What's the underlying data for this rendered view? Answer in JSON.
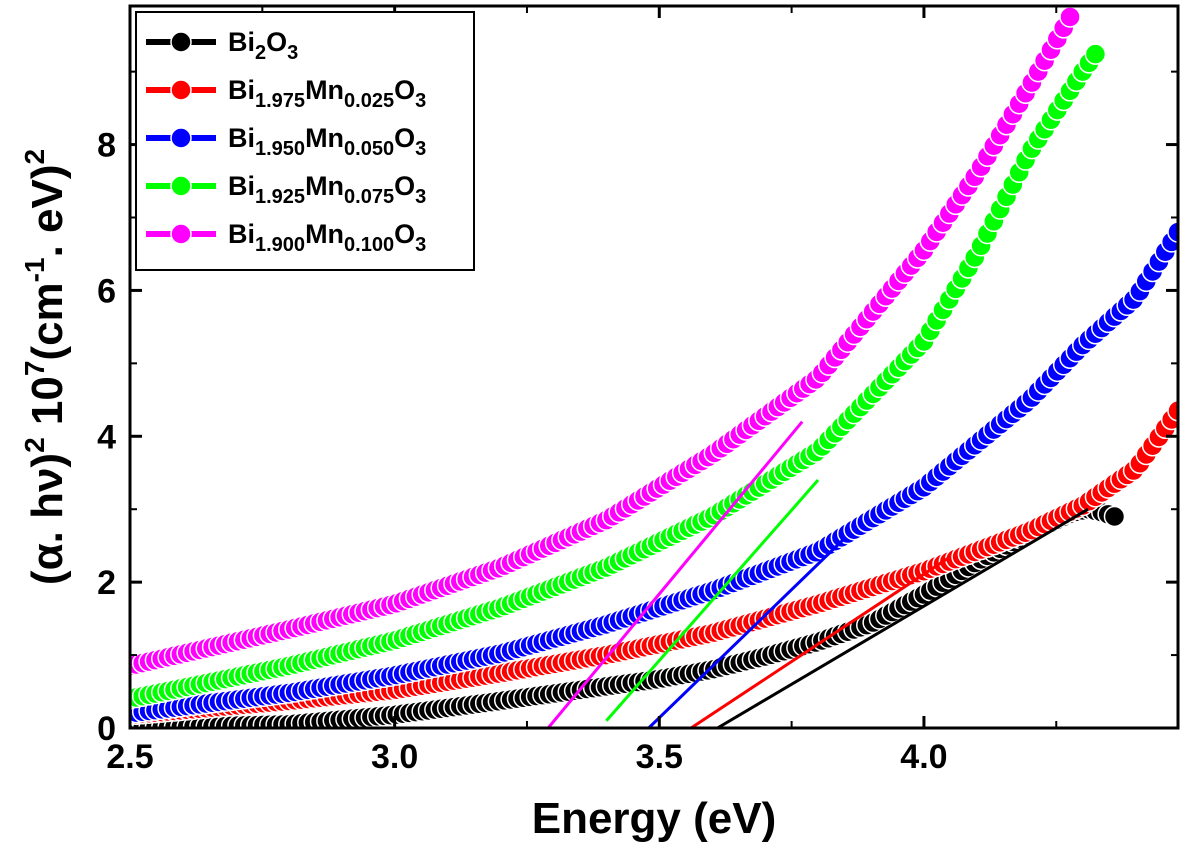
{
  "chart_data": {
    "type": "scatter",
    "title": "",
    "xlabel": "Energy (eV)",
    "ylabel": {
      "open": "(",
      "alpha": "α",
      "mid": ". hν)",
      "sup1": "2",
      "ten": " 10",
      "sup2": "7",
      "cm": "(cm",
      "sup3": "-1",
      "ev": ". eV)",
      "sup4": "2"
    },
    "xlim": [
      2.5,
      4.48
    ],
    "ylim": [
      0,
      9.9
    ],
    "xticks": [
      2.5,
      3.0,
      3.5,
      4.0
    ],
    "xtick_labels": [
      "2.5",
      "3.0",
      "3.5",
      "4.0"
    ],
    "yticks": [
      0,
      2,
      4,
      6,
      8
    ],
    "ytick_labels": [
      "0",
      "2",
      "4",
      "6",
      "8"
    ],
    "legend_position": "top-left",
    "series": [
      {
        "name": "Bi2O3",
        "label": {
          "base": "Bi",
          "sub1": "2",
          "mid": "O",
          "sub2": "3"
        },
        "color": "#000000",
        "x_range": [
          2.5,
          4.36
        ],
        "points": [
          [
            2.5,
            0.0
          ],
          [
            2.8,
            0.05
          ],
          [
            3.0,
            0.18
          ],
          [
            3.2,
            0.37
          ],
          [
            3.4,
            0.57
          ],
          [
            3.5,
            0.67
          ],
          [
            3.6,
            0.8
          ],
          [
            3.7,
            0.98
          ],
          [
            3.8,
            1.18
          ],
          [
            3.9,
            1.43
          ],
          [
            4.0,
            1.83
          ],
          [
            4.1,
            2.28
          ],
          [
            4.2,
            2.68
          ],
          [
            4.28,
            2.95
          ],
          [
            4.31,
            3.0
          ],
          [
            4.34,
            2.95
          ],
          [
            4.36,
            2.9
          ]
        ],
        "fit": [
          [
            3.61,
            0.0
          ],
          [
            4.31,
            3.0
          ]
        ]
      },
      {
        "name": "Bi1.975Mn0.025O3",
        "label": {
          "base": "Bi",
          "sub1": "1.975",
          "mid": "Mn",
          "sub2": "0.025",
          "end": "O",
          "sub3": "3"
        },
        "color": "#ff0000",
        "x_range": [
          2.5,
          4.48
        ],
        "points": [
          [
            2.5,
            0.18
          ],
          [
            2.8,
            0.37
          ],
          [
            3.0,
            0.52
          ],
          [
            3.2,
            0.75
          ],
          [
            3.4,
            1.0
          ],
          [
            3.6,
            1.3
          ],
          [
            3.8,
            1.7
          ],
          [
            4.0,
            2.15
          ],
          [
            4.2,
            2.7
          ],
          [
            4.3,
            3.05
          ],
          [
            4.4,
            3.55
          ],
          [
            4.48,
            4.35
          ]
        ],
        "fit": [
          [
            3.56,
            0.0
          ],
          [
            4.05,
            2.35
          ]
        ]
      },
      {
        "name": "Bi1.950Mn0.050O3",
        "label": {
          "base": "Bi",
          "sub1": "1.950",
          "mid": "Mn",
          "sub2": "0.050",
          "end": "O",
          "sub3": "3"
        },
        "color": "#0000ff",
        "x_range": [
          2.5,
          4.48
        ],
        "points": [
          [
            2.5,
            0.2
          ],
          [
            2.8,
            0.48
          ],
          [
            3.0,
            0.72
          ],
          [
            3.2,
            1.02
          ],
          [
            3.4,
            1.42
          ],
          [
            3.6,
            1.88
          ],
          [
            3.8,
            2.42
          ],
          [
            4.0,
            3.3
          ],
          [
            4.2,
            4.5
          ],
          [
            4.3,
            5.25
          ],
          [
            4.4,
            5.9
          ],
          [
            4.48,
            6.8
          ]
        ],
        "fit": [
          [
            3.48,
            0.0
          ],
          [
            3.85,
            2.6
          ]
        ]
      },
      {
        "name": "Bi1.925Mn0.075O3",
        "label": {
          "base": "Bi",
          "sub1": "1.925",
          "mid": "Mn",
          "sub2": "0.075",
          "end": "O",
          "sub3": "3"
        },
        "color": "#00ff00",
        "x_range": [
          2.5,
          4.33
        ],
        "points": [
          [
            2.5,
            0.4
          ],
          [
            2.8,
            0.85
          ],
          [
            3.0,
            1.2
          ],
          [
            3.2,
            1.65
          ],
          [
            3.4,
            2.2
          ],
          [
            3.6,
            2.9
          ],
          [
            3.8,
            3.8
          ],
          [
            4.0,
            5.3
          ],
          [
            4.1,
            6.5
          ],
          [
            4.2,
            7.9
          ],
          [
            4.3,
            9.0
          ],
          [
            4.33,
            9.3
          ]
        ],
        "fit": [
          [
            3.4,
            0.1
          ],
          [
            3.8,
            3.4
          ]
        ]
      },
      {
        "name": "Bi1.900Mn0.100O3",
        "label": {
          "base": "Bi",
          "sub1": "1.900",
          "mid": "Mn",
          "sub2": "0.100",
          "end": "O",
          "sub3": "3"
        },
        "color": "#ff00ff",
        "x_range": [
          2.5,
          4.28
        ],
        "points": [
          [
            2.5,
            0.85
          ],
          [
            2.8,
            1.35
          ],
          [
            3.0,
            1.7
          ],
          [
            3.2,
            2.2
          ],
          [
            3.4,
            2.85
          ],
          [
            3.6,
            3.75
          ],
          [
            3.8,
            4.8
          ],
          [
            4.0,
            6.55
          ],
          [
            4.1,
            7.6
          ],
          [
            4.2,
            8.8
          ],
          [
            4.28,
            9.8
          ]
        ],
        "fit": [
          [
            3.29,
            0.0
          ],
          [
            3.77,
            4.2
          ]
        ]
      }
    ]
  }
}
